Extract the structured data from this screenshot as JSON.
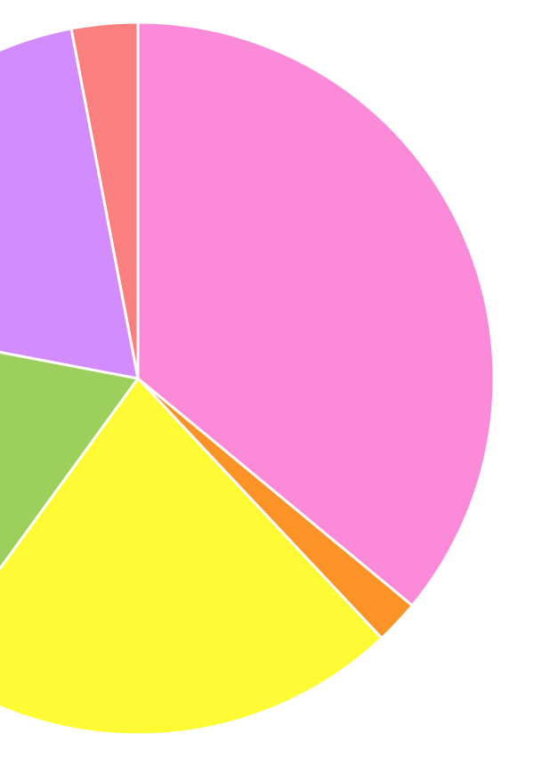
{
  "chart_data": {
    "type": "pie",
    "values": [
      36,
      2,
      22,
      18,
      19,
      3
    ],
    "colors": [
      "#fb8bd9",
      "#fb9327",
      "#fefa34",
      "#9ccf5b",
      "#d28cfd",
      "#fa8080"
    ]
  }
}
